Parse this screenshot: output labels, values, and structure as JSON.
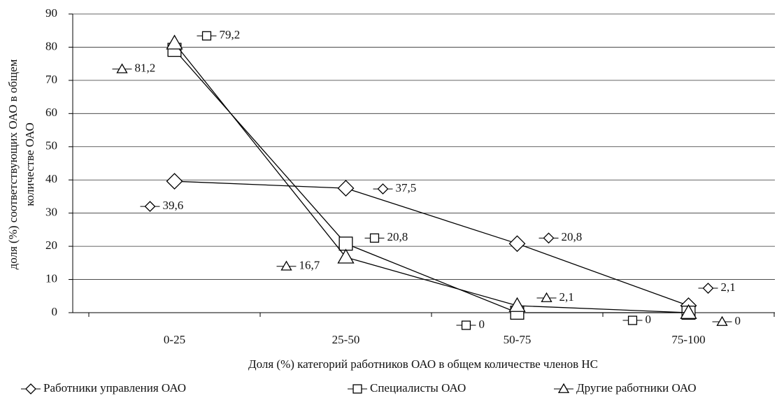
{
  "chart_data": {
    "type": "line",
    "y_label": [
      "доля (%) соответствующих ОАО в общем",
      "количестве ОАО"
    ],
    "x_label": "Доля (%) категорий работников ОАО в общем количестве членов НС",
    "categories": [
      "0-25",
      "25-50",
      "50-75",
      "75-100"
    ],
    "series": [
      {
        "name": "Работники управления ОАО",
        "marker": "diamond",
        "color": "#000000",
        "values": [
          39.6,
          37.5,
          20.8,
          2.1
        ],
        "value_labels": [
          "39,6",
          "37,5",
          "20,8",
          "2,1"
        ]
      },
      {
        "name": "Специалисты ОАО",
        "marker": "square",
        "color": "#000000",
        "values": [
          79.2,
          20.8,
          0,
          0
        ],
        "value_labels": [
          "79,2",
          "20,8",
          "0",
          "0"
        ]
      },
      {
        "name": "Другие работники ОАО",
        "marker": "triangle",
        "color": "#000000",
        "values": [
          81.2,
          16.7,
          2.1,
          0
        ],
        "value_labels": [
          "81,2",
          "16,7",
          "2,1",
          "0"
        ]
      }
    ],
    "ylim": [
      0,
      90
    ],
    "yticks": [
      0,
      10,
      20,
      30,
      40,
      50,
      60,
      70,
      80,
      90
    ],
    "grid": true,
    "legend": "bottom"
  }
}
